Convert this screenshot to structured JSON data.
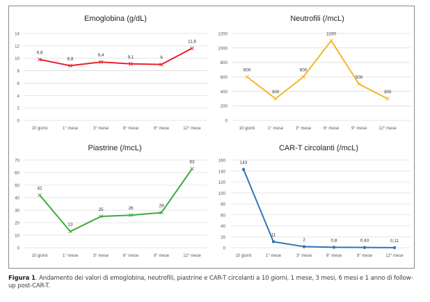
{
  "chart_data": [
    {
      "type": "line",
      "title": "Emoglobina (g/dL)",
      "categories": [
        "10 giorni",
        "1° mese",
        "3° mese",
        "6° mese",
        "9° mese",
        "12° mese"
      ],
      "values": [
        9.8,
        8.8,
        9.4,
        9.1,
        9,
        11.6
      ],
      "data_labels": [
        "9,8",
        "8,8",
        "9,4",
        "9,1",
        "9",
        "11,6"
      ],
      "yticks": [
        0,
        2,
        4,
        6,
        8,
        10,
        12,
        14
      ],
      "ylim": [
        0,
        14
      ],
      "color": "#e8202a",
      "marker": "x",
      "grid": true,
      "xlabel": "",
      "ylabel": ""
    },
    {
      "type": "line",
      "title": "Neutrofili (/mcL)",
      "categories": [
        "10 giorni",
        "1° mese",
        "3° mese",
        "6° mese",
        "9° mese",
        "12° mese"
      ],
      "values": [
        600,
        300,
        600,
        1100,
        500,
        300
      ],
      "data_labels": [
        "600",
        "300",
        "600",
        "1100",
        "500",
        "300"
      ],
      "yticks": [
        0,
        200,
        400,
        600,
        800,
        1000,
        1200
      ],
      "ylim": [
        0,
        1200
      ],
      "color": "#f5b52a",
      "marker": "x",
      "grid": true,
      "xlabel": "",
      "ylabel": ""
    },
    {
      "type": "line",
      "title": "Piastrine (/mcL)",
      "categories": [
        "10 giorni",
        "1° mese",
        "3° mese",
        "6° mese",
        "9° mese",
        "12° mese"
      ],
      "values": [
        42,
        13,
        25,
        26,
        28,
        63
      ],
      "data_labels": [
        "42",
        "13",
        "25",
        "26",
        "28",
        "63"
      ],
      "yticks": [
        0,
        10,
        20,
        30,
        40,
        50,
        60,
        70
      ],
      "ylim": [
        0,
        70
      ],
      "color": "#3aaa3a",
      "marker": "x",
      "grid": true,
      "xlabel": "",
      "ylabel": ""
    },
    {
      "type": "line",
      "title": "CAR-T circolanti (/mcL)",
      "categories": [
        "10 giorni",
        "1° mese",
        "3° mese",
        "6° mese",
        "9° mese",
        "12° mese"
      ],
      "values": [
        143,
        11,
        2,
        0.8,
        0.43,
        0.11
      ],
      "data_labels": [
        "143",
        "11",
        "2",
        "0,8",
        "0,43",
        "0,11"
      ],
      "yticks": [
        0,
        20,
        40,
        60,
        80,
        100,
        120,
        140,
        160
      ],
      "ylim": [
        0,
        160
      ],
      "color": "#2e75b6",
      "marker": "dot",
      "grid": true,
      "xlabel": "",
      "ylabel": ""
    }
  ],
  "caption": {
    "label": "Figura 1",
    "text": ". Andamento dei valori di emoglobina, neutrofili, piastrine e CAR-T circolanti a 10 giorni, 1 mese, 3 mesi, 6 mesi e 1 anno di follow-up post-CAR-T."
  }
}
